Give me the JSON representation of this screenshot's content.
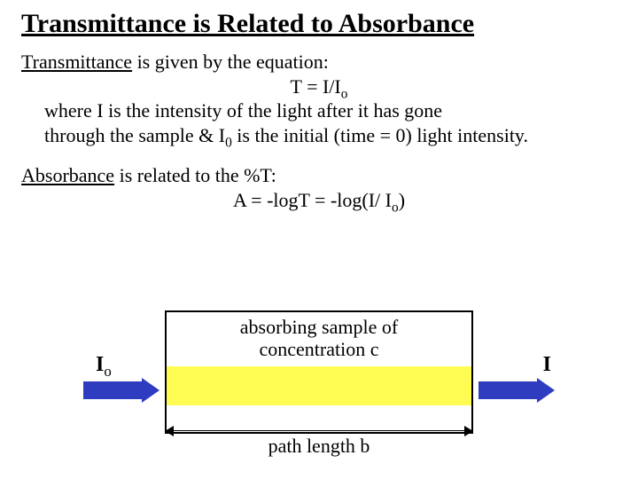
{
  "title": "Transmittance is Related to Absorbance",
  "p1_lead_ul": "Transmittance",
  "p1_tail": " is given by the equation:",
  "eq1_pre": "T = I/I",
  "eq1_sub": "o",
  "p2a": "where I is the intensity of the light after it has gone",
  "p2b_pre": "through the sample & I",
  "p2b_sub": "0",
  "p2b_post": " is the initial (time = 0) light intensity.",
  "p3_lead_ul": "Absorbance",
  "p3_tail": " is related to the %T:",
  "eq2_pre": "A = -logT = -log(I/ I",
  "eq2_sub": "o",
  "eq2_post": ")",
  "diagram": {
    "io_label_pre": "I",
    "io_label_sub": "o",
    "i_label": "I",
    "sample_line1": "absorbing sample of",
    "sample_line2": "concentration c",
    "path_label": "path length b",
    "colors": {
      "arrow": "#2e3cc0",
      "sample_band": "#fffd54",
      "box_border": "#000000",
      "background": "#ffffff",
      "text": "#000000"
    }
  }
}
